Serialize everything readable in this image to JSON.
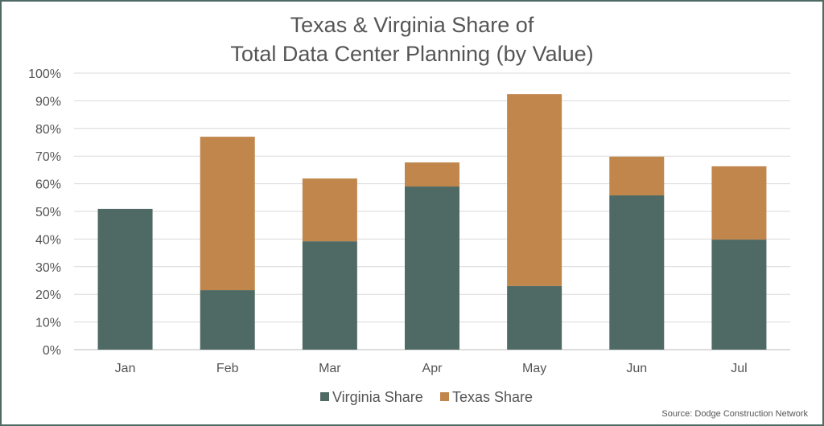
{
  "chart_data": {
    "type": "bar",
    "stacked": true,
    "title": [
      "Texas & Virginia Share of",
      "Total Data Center Planning (by Value)"
    ],
    "categories": [
      "Jan",
      "Feb",
      "Mar",
      "Apr",
      "May",
      "Jun",
      "Jul"
    ],
    "series": [
      {
        "name": "Virginia Share",
        "color": "#4f6a64",
        "values": [
          50.9,
          21.5,
          39.2,
          59.0,
          23.0,
          55.8,
          39.8
        ]
      },
      {
        "name": "Texas Share",
        "color": "#c0864c",
        "values": [
          0,
          55.5,
          22.7,
          8.7,
          69.4,
          14.0,
          26.5
        ]
      }
    ],
    "ylim": [
      0,
      100
    ],
    "yticks": [
      "0%",
      "10%",
      "20%",
      "30%",
      "40%",
      "50%",
      "60%",
      "70%",
      "80%",
      "90%",
      "100%"
    ],
    "grid": true,
    "legend_position": "bottom",
    "source": "Source: Dodge Construction Network"
  }
}
